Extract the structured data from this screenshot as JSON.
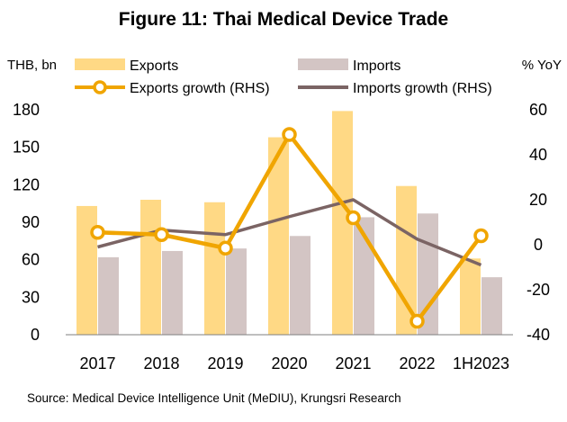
{
  "chart_data": {
    "type": "bar+line",
    "title": "Figure 11: Thai Medical Device Trade",
    "left_axis_unit": "THB, bn",
    "right_axis_unit": "% YoY",
    "categories": [
      "2017",
      "2018",
      "2019",
      "2020",
      "2021",
      "2022",
      "1H2023"
    ],
    "left_ylim": [
      0,
      180
    ],
    "left_ticks": [
      0,
      30,
      60,
      90,
      120,
      150,
      180
    ],
    "right_ylim": [
      -40,
      60
    ],
    "right_ticks": [
      -40,
      -20,
      0,
      20,
      40,
      60
    ],
    "bar_series": [
      {
        "name": "Exports",
        "color": "#FFD985",
        "values": [
          103,
          108,
          106,
          158,
          179,
          119,
          61
        ]
      },
      {
        "name": "Imports",
        "color": "#D3C5C4",
        "values": [
          62,
          67,
          69,
          79,
          94,
          97,
          46
        ]
      }
    ],
    "line_series": [
      {
        "name": "Exports growth (RHS)",
        "color": "#F0A500",
        "axis": "right",
        "markers": true,
        "values": [
          5.5,
          4.5,
          -1.5,
          49,
          12,
          -34,
          4
        ]
      },
      {
        "name": "Imports growth (RHS)",
        "color": "#7B6464",
        "axis": "right",
        "markers": false,
        "values": [
          -1,
          6.5,
          4.5,
          12.5,
          20,
          2.5,
          -9
        ]
      }
    ],
    "grid": false,
    "legend_position": "top"
  },
  "source": "Source: Medical Device Intelligence Unit (MeDIU), Krungsri Research"
}
